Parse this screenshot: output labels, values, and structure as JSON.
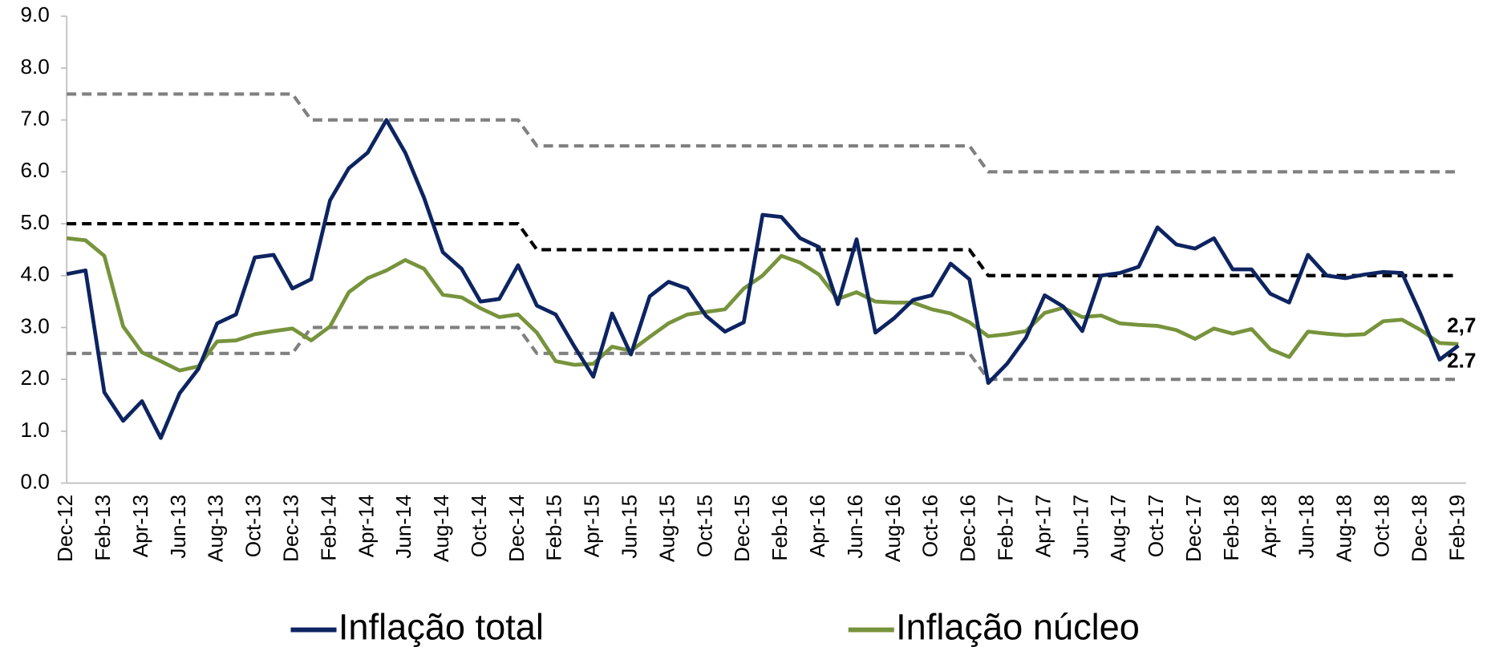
{
  "chart_data": {
    "type": "line",
    "categories": [
      "Dec-12",
      null,
      "Feb-13",
      null,
      "Apr-13",
      null,
      "Jun-13",
      null,
      "Aug-13",
      null,
      "Oct-13",
      null,
      "Dec-13",
      null,
      "Feb-14",
      null,
      "Apr-14",
      null,
      "Jun-14",
      null,
      "Aug-14",
      null,
      "Oct-14",
      null,
      "Dec-14",
      null,
      "Feb-15",
      null,
      "Apr-15",
      null,
      "Jun-15",
      null,
      "Aug-15",
      null,
      "Oct-15",
      null,
      "Dec-15",
      null,
      "Feb-16",
      null,
      "Apr-16",
      null,
      "Jun-16",
      null,
      "Aug-16",
      null,
      "Oct-16",
      null,
      "Dec-16",
      null,
      "Feb-17",
      null,
      "Apr-17",
      null,
      "Jun-17",
      null,
      "Aug-17",
      null,
      "Oct-17",
      null,
      "Dec-17",
      null,
      "Feb-18",
      null,
      "Apr-18",
      null,
      "Jun-18",
      null,
      "Aug-18",
      null,
      "Oct-18",
      null,
      "Dec-18",
      null,
      "Feb-19"
    ],
    "series": [
      {
        "name": "Inflação total",
        "color": "#0d2461",
        "line_style": "solid",
        "values": [
          4.03,
          4.1,
          1.75,
          1.2,
          1.58,
          0.87,
          1.73,
          2.2,
          3.08,
          3.25,
          4.35,
          4.4,
          3.75,
          3.93,
          5.45,
          6.07,
          6.37,
          7.0,
          6.37,
          5.5,
          4.45,
          4.13,
          3.5,
          3.55,
          4.2,
          3.42,
          3.25,
          2.63,
          2.05,
          3.27,
          2.48,
          3.6,
          3.88,
          3.75,
          3.22,
          2.92,
          3.1,
          5.17,
          5.13,
          4.72,
          4.55,
          3.45,
          4.7,
          2.9,
          3.18,
          3.53,
          3.62,
          4.23,
          3.93,
          1.93,
          2.3,
          2.8,
          3.62,
          3.4,
          2.93,
          4.0,
          4.05,
          4.17,
          4.93,
          4.6,
          4.52,
          4.72,
          4.12,
          4.12,
          3.65,
          3.48,
          4.4,
          4.0,
          3.95,
          4.02,
          4.07,
          4.05,
          3.25,
          2.38,
          2.65
        ]
      },
      {
        "name": "Inflação núcleo",
        "color": "#77933c",
        "line_style": "solid",
        "values": [
          4.72,
          4.68,
          4.38,
          3.02,
          2.52,
          2.35,
          2.17,
          2.25,
          2.73,
          2.75,
          2.87,
          2.93,
          2.98,
          2.75,
          3.02,
          3.68,
          3.95,
          4.1,
          4.3,
          4.13,
          3.63,
          3.58,
          3.37,
          3.2,
          3.25,
          2.9,
          2.35,
          2.28,
          2.3,
          2.63,
          2.55,
          2.82,
          3.08,
          3.25,
          3.3,
          3.35,
          3.75,
          4.0,
          4.38,
          4.25,
          4.02,
          3.55,
          3.68,
          3.5,
          3.48,
          3.48,
          3.35,
          3.27,
          3.1,
          2.83,
          2.87,
          2.93,
          3.28,
          3.38,
          3.2,
          3.23,
          3.08,
          3.05,
          3.03,
          2.95,
          2.78,
          2.98,
          2.88,
          2.97,
          2.58,
          2.43,
          2.92,
          2.88,
          2.85,
          2.87,
          3.12,
          3.15,
          2.95,
          2.7,
          2.68
        ]
      },
      {
        "color": "#808080",
        "line_style": "dashed",
        "values": [
          7.5,
          7.5,
          7.5,
          7.5,
          7.5,
          7.5,
          7.5,
          7.5,
          7.5,
          7.5,
          7.5,
          7.5,
          7.5,
          7.0,
          7.0,
          7.0,
          7.0,
          7.0,
          7.0,
          7.0,
          7.0,
          7.0,
          7.0,
          7.0,
          7.0,
          6.5,
          6.5,
          6.5,
          6.5,
          6.5,
          6.5,
          6.5,
          6.5,
          6.5,
          6.5,
          6.5,
          6.5,
          6.5,
          6.5,
          6.5,
          6.5,
          6.5,
          6.5,
          6.5,
          6.5,
          6.5,
          6.5,
          6.5,
          6.5,
          6.0,
          6.0,
          6.0,
          6.0,
          6.0,
          6.0,
          6.0,
          6.0,
          6.0,
          6.0,
          6.0,
          6.0,
          6.0,
          6.0,
          6.0,
          6.0,
          6.0,
          6.0,
          6.0,
          6.0,
          6.0,
          6.0,
          6.0,
          6.0,
          6.0,
          6.0
        ]
      },
      {
        "color": "#000000",
        "line_style": "dashed",
        "values": [
          5.0,
          5.0,
          5.0,
          5.0,
          5.0,
          5.0,
          5.0,
          5.0,
          5.0,
          5.0,
          5.0,
          5.0,
          5.0,
          5.0,
          5.0,
          5.0,
          5.0,
          5.0,
          5.0,
          5.0,
          5.0,
          5.0,
          5.0,
          5.0,
          5.0,
          4.5,
          4.5,
          4.5,
          4.5,
          4.5,
          4.5,
          4.5,
          4.5,
          4.5,
          4.5,
          4.5,
          4.5,
          4.5,
          4.5,
          4.5,
          4.5,
          4.5,
          4.5,
          4.5,
          4.5,
          4.5,
          4.5,
          4.5,
          4.5,
          4.0,
          4.0,
          4.0,
          4.0,
          4.0,
          4.0,
          4.0,
          4.0,
          4.0,
          4.0,
          4.0,
          4.0,
          4.0,
          4.0,
          4.0,
          4.0,
          4.0,
          4.0,
          4.0,
          4.0,
          4.0,
          4.0,
          4.0,
          4.0,
          4.0,
          4.0
        ]
      },
      {
        "color": "#808080",
        "line_style": "dashed",
        "values": [
          2.5,
          2.5,
          2.5,
          2.5,
          2.5,
          2.5,
          2.5,
          2.5,
          2.5,
          2.5,
          2.5,
          2.5,
          2.5,
          3.0,
          3.0,
          3.0,
          3.0,
          3.0,
          3.0,
          3.0,
          3.0,
          3.0,
          3.0,
          3.0,
          3.0,
          2.5,
          2.5,
          2.5,
          2.5,
          2.5,
          2.5,
          2.5,
          2.5,
          2.5,
          2.5,
          2.5,
          2.5,
          2.5,
          2.5,
          2.5,
          2.5,
          2.5,
          2.5,
          2.5,
          2.5,
          2.5,
          2.5,
          2.5,
          2.5,
          2.0,
          2.0,
          2.0,
          2.0,
          2.0,
          2.0,
          2.0,
          2.0,
          2.0,
          2.0,
          2.0,
          2.0,
          2.0,
          2.0,
          2.0,
          2.0,
          2.0,
          2.0,
          2.0,
          2.0,
          2.0,
          2.0,
          2.0,
          2.0,
          2.0,
          2.0
        ]
      }
    ],
    "annotations": [
      {
        "text": "2,7",
        "color": "#77933c"
      },
      {
        "text": "2.7",
        "color": "#0d2461"
      }
    ],
    "ylim": [
      0,
      9
    ],
    "yticks": [
      {
        "value": 0,
        "label": "0.0"
      },
      {
        "value": 1,
        "label": "1.0"
      },
      {
        "value": 2,
        "label": "2.0"
      },
      {
        "value": 3,
        "label": "3.0"
      },
      {
        "value": 4,
        "label": "4.0"
      },
      {
        "value": 5,
        "label": "5.0"
      },
      {
        "value": 6,
        "label": "6.0"
      },
      {
        "value": 7,
        "label": "7.0"
      },
      {
        "value": 8,
        "label": "8.0"
      },
      {
        "value": 9,
        "label": "9.0"
      }
    ],
    "grid": false,
    "legend": "bottom"
  }
}
